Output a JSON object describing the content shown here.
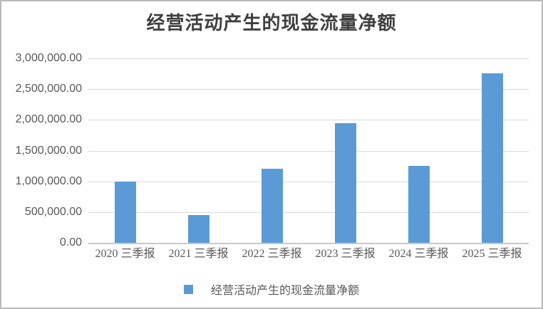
{
  "chart_data": {
    "type": "bar",
    "title": "经营活动产生的现金流量净额",
    "categories": [
      "2020 三季报",
      "2021 三季报",
      "2022 三季报",
      "2023 三季报",
      "2024 三季报",
      "2025 三季报"
    ],
    "values": [
      1000000,
      455000,
      1200000,
      1950000,
      1255000,
      2760000
    ],
    "series_name": "经营活动产生的现金流量净额",
    "xlabel": "",
    "ylabel": "",
    "ylim": [
      0,
      3000000
    ],
    "y_tick_step": 500000,
    "y_ticks": [
      {
        "label": "3,000,000.00",
        "value": 3000000
      },
      {
        "label": "2,500,000.00",
        "value": 2500000
      },
      {
        "label": "2,000,000.00",
        "value": 2000000
      },
      {
        "label": "1,500,000.00",
        "value": 1500000
      },
      {
        "label": "1,000,000.00",
        "value": 1000000
      },
      {
        "label": "500,000.00",
        "value": 500000
      },
      {
        "label": "0.00",
        "value": 0
      }
    ],
    "grid": true,
    "legend": {
      "label": "经营活动产生的现金流量净额",
      "position": "bottom"
    },
    "colors": {
      "bar": "#5b9bd5",
      "gridline": "#d9d9d9",
      "axis_line": "#c9c9c9",
      "tick_text": "#595959",
      "title_text": "#3f3f3f",
      "frame_border": "#b9b9b9",
      "background": "#ffffff"
    }
  }
}
